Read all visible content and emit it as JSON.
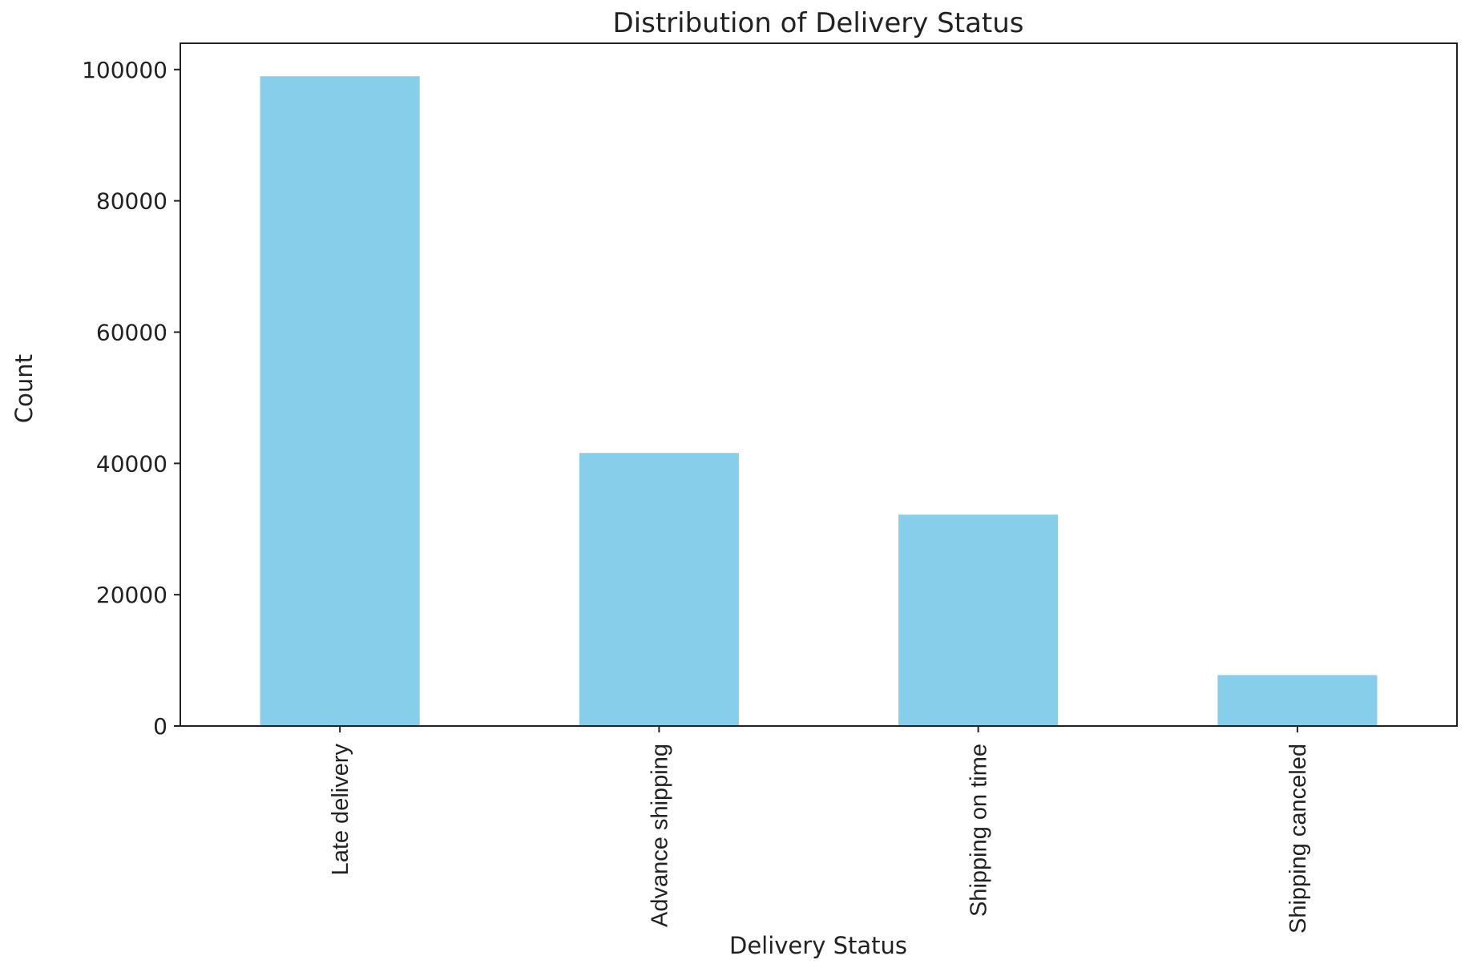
{
  "chart_data": {
    "type": "bar",
    "title": "Distribution of Delivery Status",
    "xlabel": "Delivery Status",
    "ylabel": "Count",
    "categories": [
      "Late delivery",
      "Advance shipping",
      "Shipping on time",
      "Shipping canceled"
    ],
    "values": [
      98977,
      41592,
      32196,
      7754
    ],
    "ylim": [
      0,
      104000
    ],
    "yticks": [
      0,
      20000,
      40000,
      60000,
      80000,
      100000
    ],
    "ytick_labels": [
      "0",
      "20000",
      "40000",
      "60000",
      "80000",
      "100000"
    ],
    "bar_color": "#87ceeb",
    "grid": false,
    "legend": "none"
  }
}
